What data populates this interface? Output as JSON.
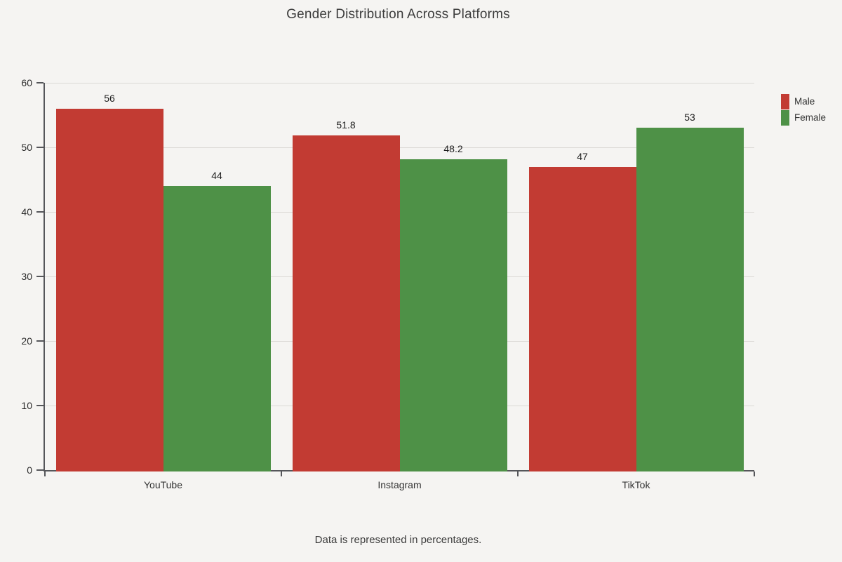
{
  "page": {
    "background": "#f5f4f2",
    "caption": "Data is represented in percentages."
  },
  "chart_data": {
    "type": "bar",
    "title": "Gender Distribution Across Platforms",
    "categories": [
      "YouTube",
      "Instagram",
      "TikTok"
    ],
    "series": [
      {
        "name": "Male",
        "color": "#c23b33",
        "values": [
          56,
          51.8,
          47
        ]
      },
      {
        "name": "Female",
        "color": "#4e9147",
        "values": [
          44,
          48.2,
          53
        ]
      }
    ],
    "ylim": [
      0,
      60
    ],
    "yticks": [
      0,
      10,
      20,
      30,
      40,
      50,
      60
    ],
    "grid": true,
    "value_labels": true,
    "legend_position": "top-right",
    "xlabel": "",
    "ylabel": "",
    "colors": {
      "axis": "#55565a",
      "gridline": "#dbd9d5",
      "text": "#333333"
    }
  }
}
